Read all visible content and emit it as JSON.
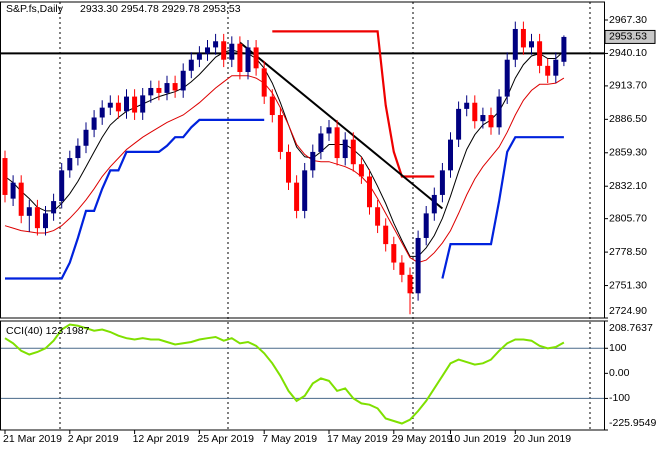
{
  "chart_data": [
    {
      "type": "candlestick",
      "title": "S&P.fs,Daily",
      "ohlc_text": "2933.30 2954.78 2929.78 2953.53",
      "categories": [
        "21 Mar 2019",
        null,
        null,
        null,
        null,
        null,
        null,
        null,
        "2 Apr 2019",
        null,
        null,
        null,
        null,
        null,
        null,
        null,
        "12 Apr 2019",
        null,
        null,
        null,
        null,
        null,
        null,
        null,
        "25 Apr 2019",
        null,
        null,
        null,
        null,
        null,
        null,
        null,
        "7 May 2019",
        null,
        null,
        null,
        null,
        null,
        null,
        null,
        "17 May 2019",
        null,
        null,
        null,
        null,
        null,
        null,
        null,
        "29 May 2019",
        null,
        null,
        null,
        null,
        null,
        null,
        "10 Jun 2019",
        null,
        null,
        null,
        null,
        null,
        null,
        null,
        "20 Jun 2019",
        null,
        null,
        null,
        null,
        null,
        null
      ],
      "open": [
        2855,
        2822,
        2835,
        2808,
        2815,
        2798,
        2810,
        2820,
        2845,
        2855,
        2865,
        2878,
        2888,
        2896,
        2900,
        2893,
        2905,
        2892,
        2906,
        2912,
        2908,
        2916,
        2910,
        2926,
        2935,
        2940,
        2945,
        2950,
        2935,
        2948,
        2925,
        2945,
        2928,
        2905,
        2890,
        2860,
        2835,
        2812,
        2845,
        2860,
        2875,
        2880,
        2855,
        2870,
        2850,
        2840,
        2815,
        2800,
        2785,
        2770,
        2760,
        2745,
        2790,
        2810,
        2825,
        2845,
        2870,
        2895,
        2900,
        2885,
        2890,
        2880,
        2905,
        2935,
        2960,
        2945,
        2950,
        2930,
        2922,
        2933.3
      ],
      "high": [
        2861,
        2841,
        2841,
        2821,
        2821,
        2816,
        2826,
        2851,
        2861,
        2871,
        2884,
        2894,
        2902,
        2906,
        2906,
        2911,
        2911,
        2912,
        2918,
        2918,
        2922,
        2922,
        2932,
        2941,
        2946,
        2951,
        2956,
        2956,
        2954,
        2954,
        2951,
        2951,
        2934,
        2911,
        2896,
        2866,
        2841,
        2851,
        2866,
        2881,
        2886,
        2886,
        2876,
        2876,
        2856,
        2846,
        2821,
        2806,
        2791,
        2776,
        2766,
        2796,
        2816,
        2831,
        2851,
        2876,
        2901,
        2906,
        2906,
        2896,
        2896,
        2911,
        2941,
        2966,
        2966,
        2956,
        2956,
        2936,
        2941,
        2954.78
      ],
      "low": [
        2819,
        2816,
        2802,
        2795,
        2792,
        2792,
        2804,
        2814,
        2839,
        2849,
        2859,
        2872,
        2882,
        2890,
        2887,
        2887,
        2886,
        2886,
        2900,
        2902,
        2902,
        2904,
        2904,
        2920,
        2929,
        2934,
        2939,
        2929,
        2929,
        2919,
        2919,
        2922,
        2899,
        2884,
        2854,
        2829,
        2806,
        2806,
        2839,
        2854,
        2869,
        2849,
        2849,
        2844,
        2834,
        2809,
        2794,
        2779,
        2764,
        2754,
        2728,
        2739,
        2784,
        2804,
        2819,
        2839,
        2864,
        2889,
        2879,
        2879,
        2874,
        2874,
        2899,
        2929,
        2939,
        2939,
        2924,
        2916,
        2916,
        2929.78
      ],
      "close": [
        2825,
        2835,
        2808,
        2815,
        2798,
        2810,
        2820,
        2845,
        2855,
        2865,
        2878,
        2888,
        2896,
        2900,
        2893,
        2905,
        2892,
        2906,
        2912,
        2908,
        2916,
        2910,
        2926,
        2935,
        2940,
        2945,
        2950,
        2935,
        2948,
        2925,
        2945,
        2928,
        2905,
        2890,
        2860,
        2835,
        2812,
        2845,
        2860,
        2875,
        2880,
        2855,
        2870,
        2850,
        2840,
        2815,
        2800,
        2785,
        2770,
        2760,
        2745,
        2790,
        2810,
        2825,
        2845,
        2870,
        2895,
        2900,
        2885,
        2890,
        2880,
        2905,
        2935,
        2960,
        2945,
        2950,
        2930,
        2922,
        2935,
        2953.53
      ],
      "up_color": "#000080",
      "down_color": "#ff0000",
      "overlays": [
        {
          "color": "#000000",
          "width": 1,
          "values": [
            2840,
            2835,
            2828,
            2822,
            2815,
            2812,
            2812,
            2818,
            2826,
            2836,
            2848,
            2860,
            2872,
            2882,
            2888,
            2893,
            2896,
            2899,
            2902,
            2905,
            2907,
            2909,
            2912,
            2917,
            2923,
            2930,
            2937,
            2941,
            2943,
            2941,
            2940,
            2936,
            2928,
            2916,
            2900,
            2882,
            2864,
            2856,
            2855,
            2860,
            2866,
            2866,
            2866,
            2862,
            2856,
            2845,
            2832,
            2818,
            2802,
            2788,
            2775,
            2775,
            2782,
            2792,
            2806,
            2824,
            2844,
            2862,
            2874,
            2882,
            2886,
            2893,
            2905,
            2920,
            2931,
            2938,
            2940,
            2936,
            2936,
            2942
          ]
        },
        {
          "color": "#dd0000",
          "width": 1,
          "values": [
            2800,
            2798,
            2796,
            2795,
            2794,
            2794,
            2796,
            2800,
            2806,
            2813,
            2821,
            2830,
            2840,
            2848,
            2855,
            2862,
            2867,
            2872,
            2876,
            2880,
            2884,
            2887,
            2890,
            2895,
            2900,
            2906,
            2912,
            2917,
            2922,
            2922,
            2922,
            2920,
            2916,
            2908,
            2896,
            2882,
            2866,
            2858,
            2853,
            2852,
            2852,
            2850,
            2848,
            2845,
            2840,
            2833,
            2822,
            2810,
            2798,
            2786,
            2774,
            2770,
            2772,
            2778,
            2786,
            2796,
            2810,
            2825,
            2838,
            2848,
            2856,
            2864,
            2876,
            2890,
            2902,
            2910,
            2915,
            2915,
            2916,
            2920
          ]
        },
        {
          "color": "#0022dd",
          "width": 2.2,
          "values": [
            2757,
            2757,
            2757,
            2757,
            2757,
            2757,
            2757,
            2757,
            2770,
            2790,
            2812,
            2812,
            2830,
            2845,
            2845,
            2860,
            2860,
            2860,
            2860,
            2860,
            2865,
            2872,
            2872,
            2880,
            2886,
            2886,
            2886,
            2886,
            2886,
            2886,
            2886,
            2886,
            2886,
            null,
            null,
            null,
            null,
            null,
            null,
            null,
            null,
            null,
            null,
            null,
            null,
            null,
            null,
            null,
            null,
            null,
            null,
            null,
            null,
            null,
            2757,
            2785,
            2785,
            2785,
            2785,
            2785,
            2785,
            2820,
            2860,
            2872,
            2872,
            2872,
            2872,
            2872,
            2872,
            2872
          ]
        },
        {
          "color": "#ee0000",
          "width": 2.2,
          "values": [
            null,
            null,
            null,
            null,
            null,
            null,
            null,
            null,
            null,
            null,
            null,
            null,
            null,
            null,
            null,
            null,
            null,
            null,
            null,
            null,
            null,
            null,
            null,
            null,
            null,
            null,
            null,
            null,
            null,
            null,
            null,
            null,
            null,
            2958,
            2958,
            2958,
            2958,
            2958,
            2958,
            2958,
            2958,
            2958,
            2958,
            2958,
            2958,
            2958,
            2958,
            2898,
            2860,
            2840,
            2840,
            2840,
            2840,
            2840,
            null,
            null,
            null,
            null,
            null,
            null,
            null,
            null,
            null,
            null,
            null,
            null,
            null,
            null,
            null,
            null
          ]
        }
      ],
      "trendline": {
        "x": [
          29,
          54
        ],
        "values": [
          2949,
          2814
        ],
        "color": "#000000"
      },
      "hline": 2940.1,
      "price_tag": {
        "value": 2953.53,
        "label": "2953.53"
      },
      "ylim": [
        2724.9,
        2981.94
      ],
      "yticks": [
        {
          "value": 2967.3,
          "label": "2967.30"
        },
        {
          "value": 2940.1,
          "label": "2940.10"
        },
        {
          "value": 2913.7,
          "label": "2913.70"
        },
        {
          "value": 2886.5,
          "label": "2886.50"
        },
        {
          "value": 2859.3,
          "label": "2859.30"
        },
        {
          "value": 2832.1,
          "label": "2832.10"
        },
        {
          "value": 2805.7,
          "label": "2805.70"
        },
        {
          "value": 2778.5,
          "label": "2778.50"
        },
        {
          "value": 2751.3,
          "label": "2751.30"
        },
        {
          "value": 2724.9,
          "label": "2724.90"
        }
      ]
    },
    {
      "type": "line",
      "title": "CCI(40) 123.1987",
      "series": [
        {
          "color": "#7fe000",
          "values": [
            140,
            120,
            90,
            75,
            85,
            100,
            130,
            175,
            195,
            190,
            180,
            170,
            175,
            165,
            150,
            140,
            135,
            140,
            135,
            135,
            125,
            115,
            120,
            125,
            135,
            140,
            145,
            130,
            140,
            120,
            125,
            110,
            80,
            40,
            -10,
            -70,
            -110,
            -90,
            -40,
            -20,
            -30,
            -70,
            -60,
            -100,
            -120,
            -125,
            -140,
            -180,
            -190,
            -200,
            -185,
            -150,
            -110,
            -60,
            -10,
            40,
            55,
            45,
            35,
            40,
            55,
            90,
            120,
            135,
            135,
            130,
            110,
            100,
            105,
            123.1987
          ]
        }
      ],
      "levels": [
        100,
        -100
      ],
      "ylim": [
        -225.9549,
        208.7637
      ],
      "yticks": [
        208.7637,
        100,
        {
          "value": 0,
          "label": "0.00"
        },
        -100,
        -225.9549
      ]
    }
  ]
}
